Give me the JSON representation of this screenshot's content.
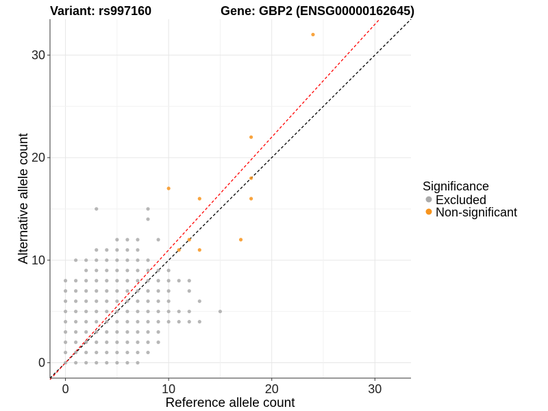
{
  "chart_data": {
    "type": "scatter",
    "title_left": "Variant: rs997160",
    "title_right": "Gene: GBP2 (ENSG00000162645)",
    "xlabel": "Reference allele count",
    "ylabel": "Alternative allele count",
    "xlim": [
      -1.5,
      33.5
    ],
    "ylim": [
      -1.5,
      33.5
    ],
    "xticks": [
      0,
      10,
      20,
      30
    ],
    "yticks": [
      0,
      10,
      20,
      30
    ],
    "grid": true,
    "legend": {
      "title": "Significance",
      "position": "right",
      "entries": [
        {
          "label": "Excluded",
          "color": "#aaaaaa"
        },
        {
          "label": "Non-significant",
          "color": "#f7941d"
        }
      ]
    },
    "reference_lines": [
      {
        "name": "y=x",
        "slope": 1,
        "intercept": 0,
        "color": "#000000",
        "style": "dashed"
      },
      {
        "name": "fitted",
        "slope": 1.1,
        "intercept": 0,
        "color": "#ff0000",
        "style": "dashed"
      }
    ],
    "series": [
      {
        "name": "Excluded",
        "color": "#aaaaaa",
        "points": [
          [
            0,
            0
          ],
          [
            0,
            1
          ],
          [
            0,
            2
          ],
          [
            0,
            3
          ],
          [
            0,
            4
          ],
          [
            0,
            5
          ],
          [
            0,
            6
          ],
          [
            0,
            7
          ],
          [
            0,
            8
          ],
          [
            1,
            0
          ],
          [
            1,
            1
          ],
          [
            1,
            2
          ],
          [
            1,
            3
          ],
          [
            1,
            4
          ],
          [
            1,
            5
          ],
          [
            1,
            6
          ],
          [
            1,
            7
          ],
          [
            1,
            8
          ],
          [
            1,
            10
          ],
          [
            2,
            0
          ],
          [
            2,
            1
          ],
          [
            2,
            2
          ],
          [
            2,
            3
          ],
          [
            2,
            4
          ],
          [
            2,
            5
          ],
          [
            2,
            6
          ],
          [
            2,
            7
          ],
          [
            2,
            8
          ],
          [
            2,
            9
          ],
          [
            2,
            10
          ],
          [
            3,
            0
          ],
          [
            3,
            1
          ],
          [
            3,
            2
          ],
          [
            3,
            3
          ],
          [
            3,
            4
          ],
          [
            3,
            5
          ],
          [
            3,
            6
          ],
          [
            3,
            7
          ],
          [
            3,
            8
          ],
          [
            3,
            9
          ],
          [
            3,
            10
          ],
          [
            3,
            11
          ],
          [
            3,
            15
          ],
          [
            4,
            0
          ],
          [
            4,
            1
          ],
          [
            4,
            2
          ],
          [
            4,
            3
          ],
          [
            4,
            4
          ],
          [
            4,
            5
          ],
          [
            4,
            6
          ],
          [
            4,
            7
          ],
          [
            4,
            8
          ],
          [
            4,
            9
          ],
          [
            4,
            10
          ],
          [
            4,
            11
          ],
          [
            5,
            0
          ],
          [
            5,
            1
          ],
          [
            5,
            2
          ],
          [
            5,
            3
          ],
          [
            5,
            4
          ],
          [
            5,
            5
          ],
          [
            5,
            6
          ],
          [
            5,
            7
          ],
          [
            5,
            8
          ],
          [
            5,
            9
          ],
          [
            5,
            10
          ],
          [
            5,
            11
          ],
          [
            5,
            12
          ],
          [
            6,
            0
          ],
          [
            6,
            1
          ],
          [
            6,
            2
          ],
          [
            6,
            3
          ],
          [
            6,
            4
          ],
          [
            6,
            5
          ],
          [
            6,
            6
          ],
          [
            6,
            7
          ],
          [
            6,
            8
          ],
          [
            6,
            9
          ],
          [
            6,
            10
          ],
          [
            6,
            11
          ],
          [
            6,
            12
          ],
          [
            7,
            0
          ],
          [
            7,
            1
          ],
          [
            7,
            2
          ],
          [
            7,
            3
          ],
          [
            7,
            4
          ],
          [
            7,
            5
          ],
          [
            7,
            6
          ],
          [
            7,
            7
          ],
          [
            7,
            8
          ],
          [
            7,
            9
          ],
          [
            7,
            10
          ],
          [
            7,
            11
          ],
          [
            7,
            12
          ],
          [
            8,
            1
          ],
          [
            8,
            2
          ],
          [
            8,
            3
          ],
          [
            8,
            4
          ],
          [
            8,
            5
          ],
          [
            8,
            6
          ],
          [
            8,
            7
          ],
          [
            8,
            8
          ],
          [
            8,
            9
          ],
          [
            8,
            10
          ],
          [
            8,
            14
          ],
          [
            8,
            15
          ],
          [
            9,
            2
          ],
          [
            9,
            3
          ],
          [
            9,
            4
          ],
          [
            9,
            5
          ],
          [
            9,
            6
          ],
          [
            9,
            7
          ],
          [
            9,
            8
          ],
          [
            9,
            9
          ],
          [
            9,
            12
          ],
          [
            10,
            4
          ],
          [
            10,
            5
          ],
          [
            10,
            6
          ],
          [
            10,
            7
          ],
          [
            10,
            8
          ],
          [
            10,
            9
          ],
          [
            11,
            4
          ],
          [
            11,
            5
          ],
          [
            11,
            8
          ],
          [
            12,
            4
          ],
          [
            12,
            5
          ],
          [
            12,
            7
          ],
          [
            12,
            8
          ],
          [
            13,
            4
          ],
          [
            13,
            6
          ],
          [
            15,
            5
          ]
        ]
      },
      {
        "name": "Non-significant",
        "color": "#f7941d",
        "points": [
          [
            10,
            17
          ],
          [
            11,
            11
          ],
          [
            12,
            12
          ],
          [
            13,
            16
          ],
          [
            13,
            11
          ],
          [
            17,
            12
          ],
          [
            18,
            22
          ],
          [
            18,
            18
          ],
          [
            18,
            16
          ],
          [
            24,
            32
          ]
        ]
      }
    ]
  }
}
